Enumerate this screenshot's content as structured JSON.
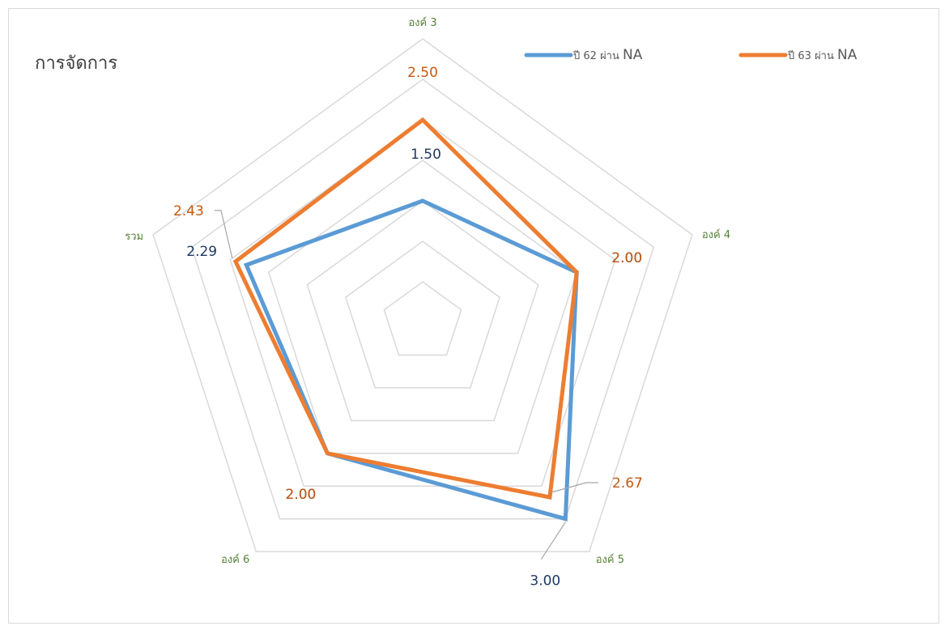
{
  "chart_data": {
    "type": "radar",
    "title": "การจัดการ",
    "axes": [
      "องค์ 3",
      "องค์ 4",
      "องค์ 5",
      "องค์ 6",
      "รวม"
    ],
    "rmax": 3.5,
    "rings": 7,
    "series": [
      {
        "name": "ปี 62",
        "legend_suffix": "ผ่าน",
        "legend_status": "NA",
        "color": "#5b9bd5",
        "label_color": "#1f3864",
        "values": [
          1.5,
          2.0,
          3.0,
          2.0,
          2.29
        ],
        "labels": [
          "1.50",
          "2.00",
          "3.00",
          "2.00",
          "2.29"
        ]
      },
      {
        "name": "ปี 63",
        "legend_suffix": "ผ่าน",
        "legend_status": "NA",
        "color": "#ed7d31",
        "label_color": "#c65911",
        "values": [
          2.5,
          2.0,
          2.67,
          2.0,
          2.43
        ],
        "labels": [
          "2.50",
          "2.00",
          "2.67",
          "2.00",
          "2.43"
        ]
      }
    ],
    "axis_label_color": "#548235",
    "grid_color": "#d9d9d9",
    "legend_position": "top-right",
    "grid": true
  }
}
